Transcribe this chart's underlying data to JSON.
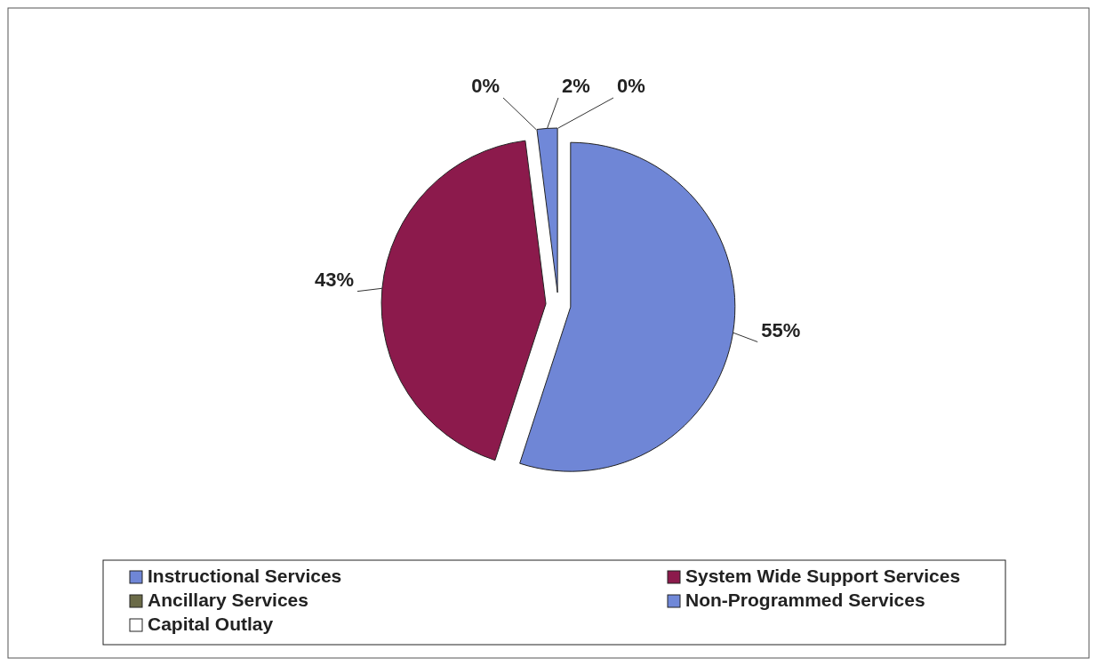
{
  "chart_data": {
    "type": "pie",
    "categories": [
      "Instructional Services",
      "System Wide Support Services",
      "Ancillary Services",
      "Non-Programmed Services",
      "Capital Outlay"
    ],
    "values": [
      55,
      43,
      0,
      2,
      0
    ],
    "colors": [
      "#6f86d6",
      "#8c1a4c",
      "#6b6b48",
      "#7088d8",
      "#ffffff"
    ],
    "value_labels": [
      "55%",
      "43%",
      "0%",
      "2%",
      "0%"
    ],
    "legend": "bottom"
  }
}
